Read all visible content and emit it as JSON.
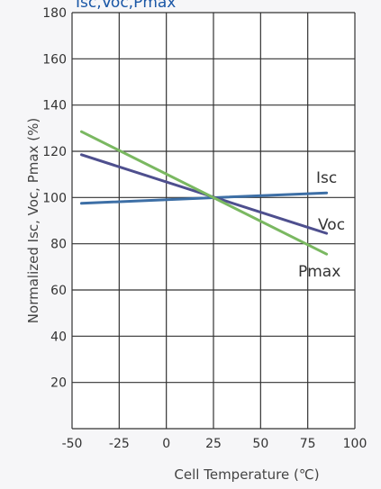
{
  "chart_data": {
    "type": "line",
    "title": "Isc,Voc,Pmax",
    "xlabel": "Cell Temperature (℃)",
    "ylabel": "Normalized Isc, Voc, Pmax (%)",
    "xlim": [
      -50,
      100
    ],
    "ylim": [
      0,
      180
    ],
    "xticks": [
      "-50",
      "-25",
      "0",
      "25",
      "50",
      "75",
      "100"
    ],
    "yticks": [
      "20",
      "40",
      "60",
      "80",
      "100",
      "120",
      "140",
      "160",
      "180"
    ],
    "grid": true,
    "series": [
      {
        "name": "Isc",
        "color": "#3d6fa6",
        "x": [
          -45,
          85
        ],
        "y": [
          97.5,
          102
        ]
      },
      {
        "name": "Voc",
        "color": "#4e4f8e",
        "x": [
          -45,
          85
        ],
        "y": [
          118.5,
          84.5
        ]
      },
      {
        "name": "Pmax",
        "color": "#7ab861",
        "x": [
          -45,
          85
        ],
        "y": [
          128.5,
          75.5
        ]
      }
    ]
  }
}
